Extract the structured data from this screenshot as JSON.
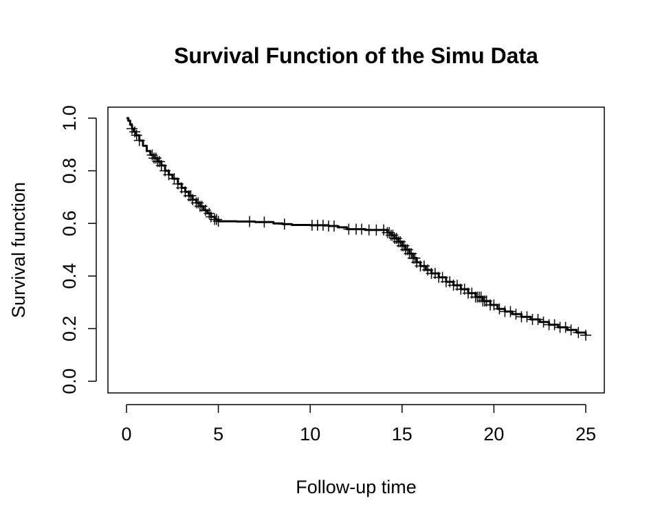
{
  "chart_data": {
    "type": "line",
    "title": "Survival Function of the Simu Data",
    "xlabel": "Follow-up time",
    "ylabel": "Survival function",
    "xlim": [
      0,
      25
    ],
    "ylim": [
      0,
      1
    ],
    "xticks": [
      "0",
      "5",
      "10",
      "15",
      "20",
      "25"
    ],
    "yticks": [
      "0.0",
      "0.2",
      "0.4",
      "0.6",
      "0.8",
      "1.0"
    ],
    "grid": false,
    "legend": "none",
    "colors": {
      "line": "#000000",
      "censor_marks": "#000000",
      "frame": "#000000"
    },
    "series": [
      {
        "line_style": "step",
        "x": [
          0,
          0.1,
          0.2,
          0.3,
          0.4,
          0.5,
          0.7,
          0.9,
          1.1,
          1.3,
          1.5,
          1.7,
          1.9,
          2.1,
          2.3,
          2.5,
          2.8,
          3.0,
          3.2,
          3.4,
          3.6,
          3.8,
          4.0,
          4.2,
          4.4,
          4.6,
          4.8,
          5.0,
          5.2,
          6.0,
          7.0,
          7.5,
          8.0,
          8.5,
          9.0,
          10.0,
          11.0,
          11.5,
          12.0,
          13.0,
          14.0,
          14.2,
          14.4,
          14.6,
          14.8,
          15.0,
          15.2,
          15.4,
          15.6,
          15.8,
          16.0,
          16.3,
          16.6,
          17.0,
          17.4,
          17.8,
          18.2,
          18.6,
          19.0,
          19.4,
          19.8,
          20.2,
          20.6,
          21.0,
          21.5,
          22.0,
          22.5,
          23.0,
          23.5,
          24.0,
          24.5,
          25.0
        ],
        "y": [
          1.0,
          0.99,
          0.975,
          0.96,
          0.948,
          0.935,
          0.915,
          0.895,
          0.875,
          0.86,
          0.848,
          0.835,
          0.82,
          0.8,
          0.785,
          0.77,
          0.75,
          0.735,
          0.72,
          0.705,
          0.69,
          0.678,
          0.665,
          0.65,
          0.638,
          0.625,
          0.615,
          0.608,
          0.608,
          0.607,
          0.605,
          0.605,
          0.6,
          0.597,
          0.594,
          0.593,
          0.59,
          0.585,
          0.578,
          0.575,
          0.575,
          0.565,
          0.555,
          0.543,
          0.53,
          0.515,
          0.5,
          0.485,
          0.468,
          0.452,
          0.438,
          0.423,
          0.41,
          0.395,
          0.378,
          0.365,
          0.35,
          0.335,
          0.32,
          0.305,
          0.29,
          0.275,
          0.265,
          0.255,
          0.245,
          0.235,
          0.225,
          0.215,
          0.205,
          0.195,
          0.185,
          0.175
        ]
      }
    ],
    "censor_times": [
      0.3,
      0.45,
      0.55,
      0.7,
      1.4,
      1.5,
      1.6,
      1.7,
      1.8,
      1.9,
      2.1,
      2.3,
      2.6,
      2.8,
      3.0,
      3.2,
      3.4,
      3.5,
      3.6,
      3.8,
      3.9,
      4.0,
      4.1,
      4.3,
      4.5,
      4.6,
      4.8,
      4.9,
      5.0,
      6.7,
      7.5,
      8.6,
      10.1,
      10.4,
      10.7,
      11.0,
      11.3,
      12.1,
      12.5,
      12.8,
      13.2,
      13.6,
      14.0,
      14.2,
      14.3,
      14.4,
      14.5,
      14.6,
      14.7,
      14.8,
      14.9,
      15.0,
      15.1,
      15.2,
      15.3,
      15.4,
      15.5,
      15.6,
      15.7,
      15.8,
      16.0,
      16.2,
      16.4,
      16.6,
      16.8,
      17.0,
      17.2,
      17.4,
      17.6,
      17.8,
      18.0,
      18.2,
      18.4,
      18.6,
      18.8,
      19.0,
      19.1,
      19.2,
      19.3,
      19.4,
      19.5,
      19.6,
      19.8,
      20.0,
      20.3,
      20.6,
      20.9,
      21.2,
      21.5,
      21.8,
      22.1,
      22.4,
      22.7,
      23.0,
      23.3,
      23.6,
      23.9,
      24.2,
      24.6,
      25.0
    ]
  }
}
